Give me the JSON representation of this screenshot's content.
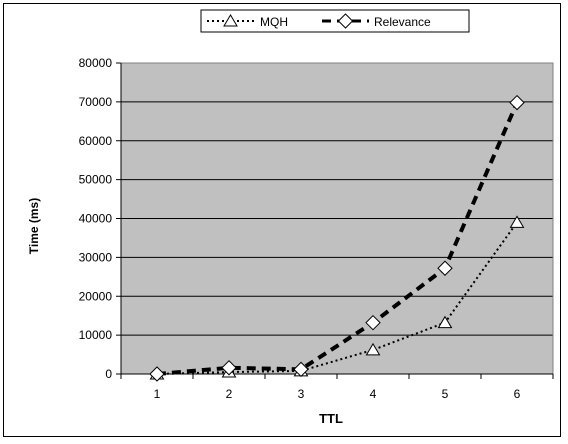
{
  "chart_data": {
    "type": "line",
    "title": "",
    "xlabel": "TTL",
    "ylabel": "Time (ms)",
    "categories": [
      "1",
      "2",
      "3",
      "4",
      "5",
      "6"
    ],
    "ylim": [
      0,
      80000
    ],
    "yticks": [
      "0",
      "10000",
      "20000",
      "30000",
      "40000",
      "50000",
      "60000",
      "70000",
      "80000"
    ],
    "grid": true,
    "plot_background": "#C0C0C0",
    "legend_position": "top",
    "series": [
      {
        "name": "MQH",
        "marker": "triangle",
        "line_style": "dotted",
        "values": [
          0,
          500,
          800,
          6200,
          13200,
          39000
        ]
      },
      {
        "name": "Relevance",
        "marker": "diamond",
        "line_style": "dashed",
        "values": [
          0,
          1600,
          1200,
          13200,
          27200,
          69800
        ]
      }
    ]
  }
}
